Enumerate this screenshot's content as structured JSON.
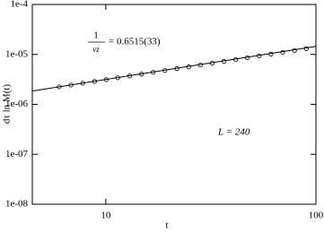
{
  "chart_data": {
    "type": "line",
    "xlabel": "t",
    "ylabel": "dτ ln M(t)",
    "annotation_fit": {
      "numerator": "1",
      "denominator": "νz",
      "text": "= 0.6515(33)"
    },
    "annotation_size": "L = 240",
    "xscale": "log",
    "yscale": "log",
    "xlim": [
      4.47,
      100
    ],
    "ylim": [
      1e-08,
      0.0001
    ],
    "xticks": [
      10,
      100
    ],
    "yticks": [
      {
        "value": 1e-08,
        "label": "1e-08"
      },
      {
        "value": 1e-07,
        "label": "1e-07"
      },
      {
        "value": 1e-06,
        "label": "1e-06"
      },
      {
        "value": 1e-05,
        "label": "1e-05"
      },
      {
        "value": 0.0001,
        "label": "1e-4"
      }
    ],
    "series": [
      {
        "color": "#000000",
        "marker": "circle",
        "x": [
          6,
          6.83,
          7.77,
          8.84,
          10.05,
          11.4,
          13.0,
          14.8,
          16.8,
          19.1,
          21.8,
          24.8,
          28.2,
          32.1,
          36.5,
          41.5,
          47.2,
          53.7,
          61.1,
          69.5,
          79.1,
          90
        ],
        "values": [
          2.24e-06,
          2.434e-06,
          2.65e-06,
          2.88e-06,
          3.13e-06,
          3.41e-06,
          3.71e-06,
          4.03e-06,
          4.39e-06,
          4.77e-06,
          5.19e-06,
          5.64e-06,
          6.14e-06,
          6.67e-06,
          7.26e-06,
          7.9e-06,
          8.59e-06,
          9.34e-06,
          1.016e-05,
          1.105e-05,
          1.202e-05,
          1.307e-05
        ]
      },
      {
        "color": "#000000",
        "marker": "none",
        "x": [
          4.47,
          100
        ],
        "values": [
          1.85e-06,
          1.45e-05
        ]
      }
    ]
  }
}
